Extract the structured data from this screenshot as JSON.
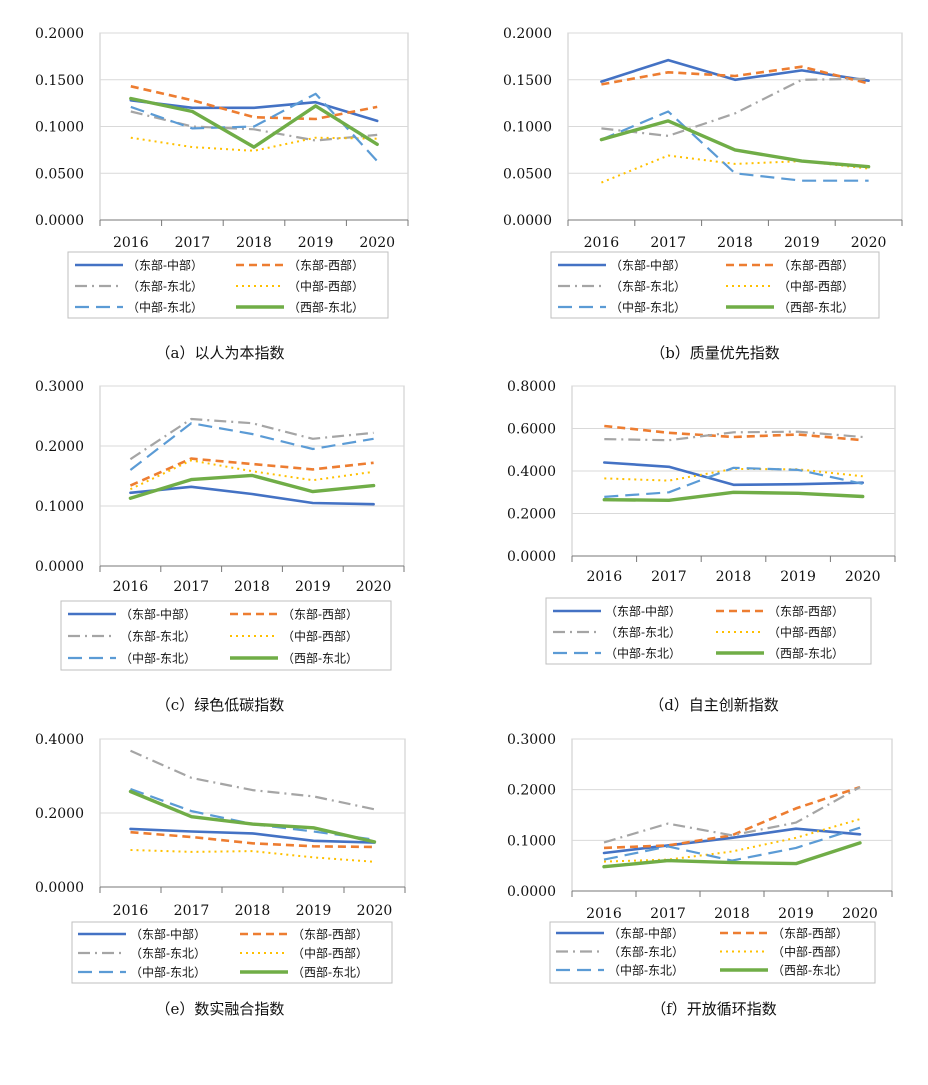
{
  "styles": {
    "东部-中部": {
      "color": "#4472C4",
      "dash": "solid",
      "width": 2.6
    },
    "东部-西部": {
      "color": "#ED7D31",
      "dash": "dash",
      "width": 2.6
    },
    "东部-东北": {
      "color": "#A5A5A5",
      "dash": "dashdot",
      "width": 2.2
    },
    "中部-西部": {
      "color": "#FFC000",
      "dash": "dot",
      "width": 2.0
    },
    "中部-东北": {
      "color": "#5B9BD5",
      "dash": "longdash",
      "width": 2.2
    },
    "西部-东北": {
      "color": "#70AD47",
      "dash": "solid",
      "width": 3.4
    }
  },
  "chart_data": [
    {
      "type": "line",
      "caption": "（a）以人为本指数",
      "x": [
        "2016",
        "2017",
        "2018",
        "2019",
        "2020"
      ],
      "yticks": [
        "0.0000",
        "0.0500",
        "0.1000",
        "0.1500",
        "0.2000"
      ],
      "ylim": [
        0,
        0.2
      ],
      "legend": [
        "（东部-中部）",
        "（东部-西部）",
        "（东部-东北）",
        "（中部-西部）",
        "（中部-东北）",
        "（西部-东北）"
      ],
      "series": [
        {
          "name": "东部-中部",
          "values": [
            0.128,
            0.12,
            0.12,
            0.126,
            0.106
          ]
        },
        {
          "name": "东部-西部",
          "values": [
            0.143,
            0.128,
            0.11,
            0.108,
            0.121
          ]
        },
        {
          "name": "东部-东北",
          "values": [
            0.116,
            0.1,
            0.097,
            0.085,
            0.091
          ]
        },
        {
          "name": "中部-西部",
          "values": [
            0.088,
            0.078,
            0.074,
            0.088,
            0.087
          ]
        },
        {
          "name": "中部-东北",
          "values": [
            0.121,
            0.098,
            0.1,
            0.135,
            0.063
          ]
        },
        {
          "name": "西部-东北",
          "values": [
            0.13,
            0.116,
            0.078,
            0.122,
            0.081
          ]
        }
      ]
    },
    {
      "type": "line",
      "caption": "（b）质量优先指数",
      "x": [
        "2016",
        "2017",
        "2018",
        "2019",
        "2020"
      ],
      "yticks": [
        "0.0000",
        "0.0500",
        "0.1000",
        "0.1500",
        "0.2000"
      ],
      "ylim": [
        0,
        0.2
      ],
      "legend": [
        "（东部-中部）",
        "（东部-西部）",
        "（东部-东北）",
        "（中部-西部）",
        "（中部-东北）",
        "（西部-东北）"
      ],
      "series": [
        {
          "name": "东部-中部",
          "values": [
            0.148,
            0.171,
            0.15,
            0.16,
            0.149
          ]
        },
        {
          "name": "东部-西部",
          "values": [
            0.145,
            0.158,
            0.154,
            0.164,
            0.146
          ]
        },
        {
          "name": "东部-东北",
          "values": [
            0.098,
            0.09,
            0.114,
            0.15,
            0.151
          ]
        },
        {
          "name": "中部-西部",
          "values": [
            0.04,
            0.069,
            0.06,
            0.063,
            0.055
          ]
        },
        {
          "name": "中部-东北",
          "values": [
            0.086,
            0.116,
            0.05,
            0.042,
            0.042
          ]
        },
        {
          "name": "西部-东北",
          "values": [
            0.086,
            0.106,
            0.075,
            0.063,
            0.057
          ]
        }
      ]
    },
    {
      "type": "line",
      "caption": "（c）绿色低碳指数",
      "x": [
        "2016",
        "2017",
        "2018",
        "2019",
        "2020"
      ],
      "yticks": [
        "0.0000",
        "0.1000",
        "0.2000",
        "0.3000"
      ],
      "ylim": [
        0,
        0.3
      ],
      "legend": [
        "（东部-中部）",
        "（东部-西部）",
        "（东部-东北）",
        "（中部-西部）",
        "（中部-东北）",
        "（西部-东北）"
      ],
      "series": [
        {
          "name": "东部-中部",
          "values": [
            0.122,
            0.132,
            0.12,
            0.105,
            0.103
          ]
        },
        {
          "name": "东部-西部",
          "values": [
            0.134,
            0.179,
            0.17,
            0.161,
            0.172
          ]
        },
        {
          "name": "东部-东北",
          "values": [
            0.178,
            0.245,
            0.238,
            0.212,
            0.222
          ]
        },
        {
          "name": "中部-西部",
          "values": [
            0.128,
            0.176,
            0.158,
            0.143,
            0.157
          ]
        },
        {
          "name": "中部-东北",
          "values": [
            0.16,
            0.238,
            0.22,
            0.195,
            0.212
          ]
        },
        {
          "name": "西部-东北",
          "values": [
            0.113,
            0.144,
            0.151,
            0.124,
            0.134
          ]
        }
      ]
    },
    {
      "type": "line",
      "caption": "（d）自主创新指数",
      "x": [
        "2016",
        "2017",
        "2018",
        "2019",
        "2020"
      ],
      "yticks": [
        "0.0000",
        "0.2000",
        "0.4000",
        "0.6000",
        "0.8000"
      ],
      "ylim": [
        0,
        0.8
      ],
      "legend": [
        "（东部-中部）",
        "（东部-西部）",
        "（东部-东北）",
        "（中部-西部）",
        "（中部-东北）",
        "（西部-东北）"
      ],
      "series": [
        {
          "name": "东部-中部",
          "values": [
            0.44,
            0.42,
            0.335,
            0.338,
            0.345
          ]
        },
        {
          "name": "东部-西部",
          "values": [
            0.612,
            0.58,
            0.56,
            0.572,
            0.545
          ]
        },
        {
          "name": "东部-东北",
          "values": [
            0.55,
            0.545,
            0.582,
            0.585,
            0.56
          ]
        },
        {
          "name": "中部-西部",
          "values": [
            0.365,
            0.355,
            0.41,
            0.408,
            0.375
          ]
        },
        {
          "name": "中部-东北",
          "values": [
            0.278,
            0.3,
            0.415,
            0.405,
            0.34
          ]
        },
        {
          "name": "西部-东北",
          "values": [
            0.265,
            0.262,
            0.3,
            0.295,
            0.28
          ]
        }
      ]
    },
    {
      "type": "line",
      "caption": "（e）数实融合指数",
      "x": [
        "2016",
        "2017",
        "2018",
        "2019",
        "2020"
      ],
      "yticks": [
        "0.0000",
        "0.2000",
        "0.4000"
      ],
      "ylim": [
        0,
        0.4
      ],
      "legend": [
        "（东部-中部）",
        "（东部-西部）",
        "（东部-东北）",
        "（中部-西部）",
        "（中部-东北）",
        "（西部-东北）"
      ],
      "series": [
        {
          "name": "东部-中部",
          "values": [
            0.157,
            0.15,
            0.145,
            0.125,
            0.12
          ]
        },
        {
          "name": "东部-西部",
          "values": [
            0.148,
            0.135,
            0.118,
            0.11,
            0.108
          ]
        },
        {
          "name": "东部-东北",
          "values": [
            0.368,
            0.295,
            0.262,
            0.245,
            0.21
          ]
        },
        {
          "name": "中部-西部",
          "values": [
            0.1,
            0.095,
            0.097,
            0.08,
            0.068
          ]
        },
        {
          "name": "中部-东北",
          "values": [
            0.265,
            0.205,
            0.17,
            0.15,
            0.128
          ]
        },
        {
          "name": "西部-东北",
          "values": [
            0.258,
            0.19,
            0.17,
            0.16,
            0.122
          ]
        }
      ]
    },
    {
      "type": "line",
      "caption": "（f）开放循环指数",
      "x": [
        "2016",
        "2017",
        "2018",
        "2019",
        "2020"
      ],
      "yticks": [
        "0.0000",
        "0.1000",
        "0.2000",
        "0.3000"
      ],
      "ylim": [
        0,
        0.3
      ],
      "legend": [
        "（东部-中部）",
        "（东部-西部）",
        "（东部-东北）",
        "（中部-西部）",
        "（中部-东北）",
        "（西部-东北）"
      ],
      "series": [
        {
          "name": "东部-中部",
          "values": [
            0.075,
            0.09,
            0.105,
            0.123,
            0.112
          ]
        },
        {
          "name": "东部-西部",
          "values": [
            0.085,
            0.09,
            0.11,
            0.163,
            0.205
          ]
        },
        {
          "name": "东部-东北",
          "values": [
            0.096,
            0.133,
            0.11,
            0.135,
            0.205
          ]
        },
        {
          "name": "中部-西部",
          "values": [
            0.058,
            0.062,
            0.078,
            0.105,
            0.142
          ]
        },
        {
          "name": "中部-东北",
          "values": [
            0.062,
            0.088,
            0.06,
            0.085,
            0.125
          ]
        },
        {
          "name": "西部-东北",
          "values": [
            0.048,
            0.06,
            0.056,
            0.054,
            0.095
          ]
        }
      ]
    }
  ]
}
